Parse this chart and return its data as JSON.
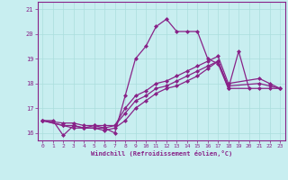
{
  "xlabel": "Windchill (Refroidissement éolien,°C)",
  "background_color": "#c8eef0",
  "line_color": "#882288",
  "marker": "D",
  "markersize": 2.0,
  "linewidth": 0.9,
  "xlim": [
    -0.5,
    23.5
  ],
  "ylim": [
    15.7,
    21.3
  ],
  "xticks": [
    0,
    1,
    2,
    3,
    4,
    5,
    6,
    7,
    8,
    9,
    10,
    11,
    12,
    13,
    14,
    15,
    16,
    17,
    18,
    19,
    20,
    21,
    22,
    23
  ],
  "yticks": [
    16,
    17,
    18,
    19,
    20,
    21
  ],
  "grid_color": "#aadddd",
  "lines": [
    [
      16.5,
      16.5,
      15.9,
      16.3,
      16.2,
      16.3,
      16.2,
      16.0,
      17.5,
      19.0,
      19.5,
      20.3,
      20.6,
      20.1,
      20.1,
      20.1,
      19.0,
      18.8,
      17.8,
      19.3,
      17.8,
      null,
      null,
      null
    ],
    [
      16.5,
      null,
      16.3,
      16.2,
      16.2,
      16.2,
      16.1,
      16.2,
      16.5,
      17.0,
      17.3,
      17.6,
      17.8,
      17.9,
      18.1,
      18.3,
      18.6,
      18.9,
      17.8,
      null,
      null,
      17.8,
      17.8,
      17.8
    ],
    [
      16.5,
      null,
      16.3,
      16.3,
      16.2,
      16.2,
      16.2,
      16.3,
      16.8,
      17.3,
      17.5,
      17.8,
      17.9,
      18.1,
      18.3,
      18.5,
      18.7,
      18.9,
      17.9,
      null,
      null,
      18.0,
      17.9,
      17.8
    ],
    [
      16.5,
      null,
      16.4,
      16.4,
      16.3,
      16.3,
      16.3,
      16.3,
      17.0,
      17.5,
      17.7,
      18.0,
      18.1,
      18.3,
      18.5,
      18.7,
      18.9,
      19.1,
      18.0,
      null,
      null,
      18.2,
      18.0,
      17.8
    ]
  ]
}
